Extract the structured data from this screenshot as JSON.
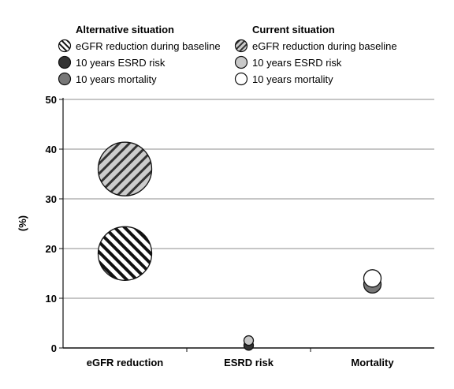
{
  "chart_data": {
    "type": "scatter",
    "ylabel": "(%)",
    "ylim": [
      0,
      50
    ],
    "yticks": [
      0,
      10,
      20,
      30,
      40,
      50
    ],
    "categories": [
      "eGFR reduction",
      "ESRD risk",
      "Mortality"
    ],
    "grid": true,
    "legend": {
      "position": "top",
      "groups": [
        {
          "title": "Alternative situation",
          "items": [
            {
              "label": "eGFR reduction during baseline",
              "style": "hatch-back",
              "color": "#ffffff"
            },
            {
              "label": "10 years ESRD risk",
              "style": "solid",
              "color": "#333333"
            },
            {
              "label": "10 years mortality",
              "style": "solid",
              "color": "#777777"
            }
          ]
        },
        {
          "title": "Current situation",
          "items": [
            {
              "label": "eGFR reduction during baseline",
              "style": "hatch-fwd",
              "color": "#cccccc"
            },
            {
              "label": "10 years ESRD risk",
              "style": "solid",
              "color": "#c8c8c8"
            },
            {
              "label": "10 years mortality",
              "style": "solid",
              "color": "#ffffff"
            }
          ]
        }
      ]
    },
    "points": [
      {
        "category": "eGFR reduction",
        "series": "Current eGFR reduction during baseline",
        "value": 36,
        "style": "hatch-fwd",
        "color": "#cccccc",
        "size": "large"
      },
      {
        "category": "eGFR reduction",
        "series": "Alternative eGFR reduction during baseline",
        "value": 19,
        "style": "hatch-back",
        "color": "#ffffff",
        "size": "large"
      },
      {
        "category": "ESRD risk",
        "series": "Alternative 10 years ESRD risk",
        "value": 0.5,
        "style": "solid",
        "color": "#333333",
        "size": "small"
      },
      {
        "category": "ESRD risk",
        "series": "Current 10 years ESRD risk",
        "value": 1.5,
        "style": "solid",
        "color": "#c8c8c8",
        "size": "small"
      },
      {
        "category": "Mortality",
        "series": "Alternative 10 years mortality",
        "value": 12.8,
        "style": "solid",
        "color": "#777777",
        "size": "medium"
      },
      {
        "category": "Mortality",
        "series": "Current 10 years mortality",
        "value": 14,
        "style": "solid",
        "color": "#ffffff",
        "size": "medium"
      }
    ]
  }
}
